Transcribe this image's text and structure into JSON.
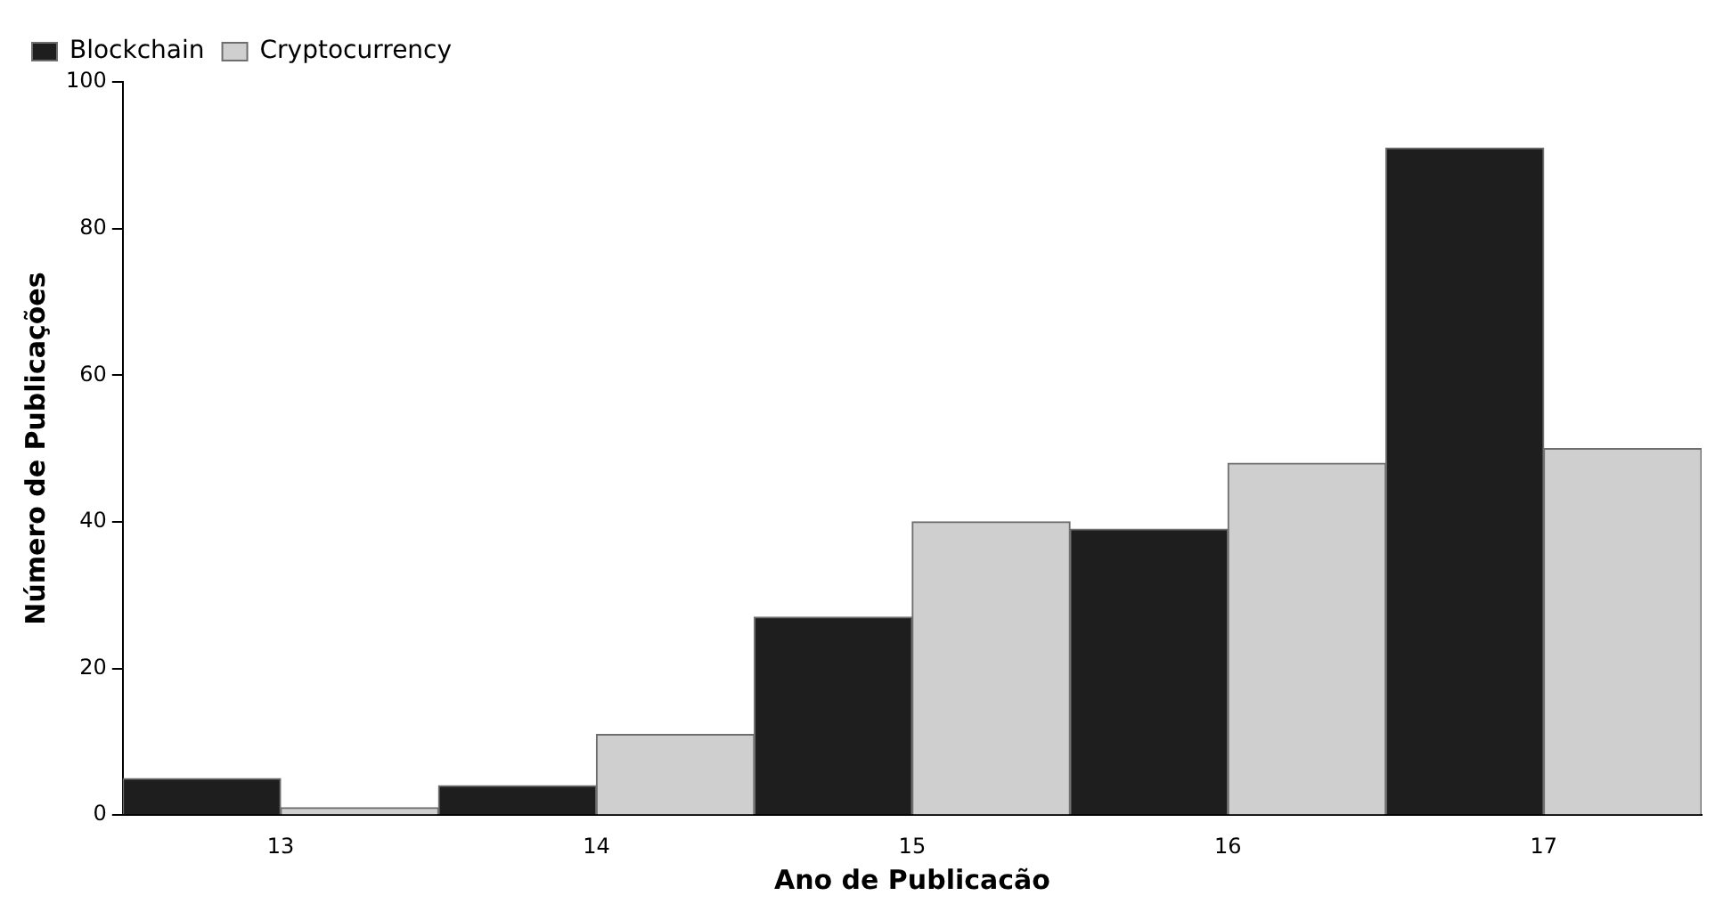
{
  "chart_data": {
    "type": "bar",
    "xlabel": "Ano de Publicacão",
    "ylabel": "Número de Publicações",
    "categories": [
      "13",
      "14",
      "15",
      "16",
      "17"
    ],
    "series": [
      {
        "name": "Blockchain",
        "color": "#1e1e1e",
        "values": [
          5,
          4,
          27,
          39,
          91
        ]
      },
      {
        "name": "Cryptocurrency",
        "color": "#cfcfcf",
        "values": [
          1,
          11,
          40,
          48,
          50
        ]
      }
    ],
    "ylim": [
      0,
      100
    ],
    "yticks": [
      0,
      20,
      40,
      60,
      80,
      100
    ],
    "grid": false,
    "legend": "top left"
  }
}
